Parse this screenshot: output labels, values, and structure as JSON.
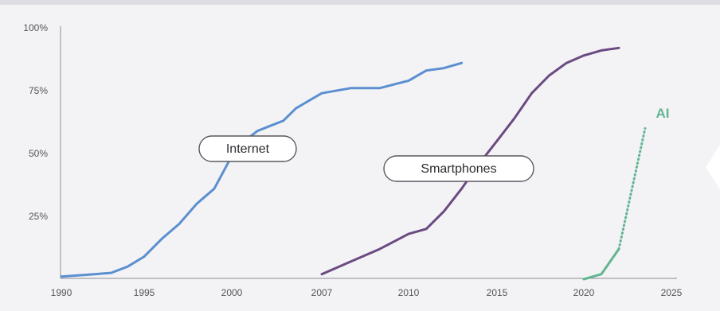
{
  "chart_data": {
    "type": "line",
    "title": "",
    "xlabel": "",
    "ylabel": "",
    "xlim": [
      1990,
      2025
    ],
    "ylim": [
      0,
      100
    ],
    "x_ticks": [
      1990,
      1995,
      2000,
      2007,
      2010,
      2015,
      2020,
      2025
    ],
    "x_tick_labels": [
      "1990",
      "1995",
      "2000",
      "2007",
      "2010",
      "2015",
      "2020",
      "2025"
    ],
    "y_ticks": [
      25,
      50,
      75,
      100
    ],
    "y_tick_labels": [
      "25%",
      "50%",
      "75%",
      "100%"
    ],
    "grid": false,
    "legend": "none",
    "series": [
      {
        "name": "Internet",
        "color": "#5b8fd0",
        "style": "solid",
        "points": [
          [
            1990,
            1
          ],
          [
            1991,
            1.5
          ],
          [
            1992,
            2
          ],
          [
            1993,
            2.5
          ],
          [
            1994,
            5
          ],
          [
            1995,
            9
          ],
          [
            1996,
            16
          ],
          [
            1997,
            22
          ],
          [
            1998,
            30
          ],
          [
            1999,
            36
          ],
          [
            2000,
            49
          ],
          [
            2001,
            55
          ],
          [
            2002,
            59
          ],
          [
            2003,
            61
          ],
          [
            2004,
            63
          ],
          [
            2005,
            68
          ],
          [
            2006,
            71
          ],
          [
            2007,
            74
          ],
          [
            2008,
            76
          ],
          [
            2009,
            76
          ],
          [
            2010,
            79
          ],
          [
            2011,
            83
          ],
          [
            2012,
            84
          ],
          [
            2013,
            86
          ]
        ]
      },
      {
        "name": "Smartphones",
        "color": "#6b4a82",
        "style": "solid",
        "points": [
          [
            2007,
            2
          ],
          [
            2008,
            7
          ],
          [
            2009,
            12
          ],
          [
            2010,
            18
          ],
          [
            2011,
            20
          ],
          [
            2012,
            27
          ],
          [
            2013,
            36
          ],
          [
            2014,
            46
          ],
          [
            2015,
            55
          ],
          [
            2016,
            64
          ],
          [
            2017,
            74
          ],
          [
            2018,
            81
          ],
          [
            2019,
            86
          ],
          [
            2020,
            89
          ],
          [
            2021,
            91
          ],
          [
            2022,
            92
          ]
        ]
      },
      {
        "name": "AI",
        "color": "#62b592",
        "style": "solid+dotted",
        "points": [
          [
            2020,
            0
          ],
          [
            2021,
            2
          ],
          [
            2022,
            12
          ]
        ],
        "dotted_points": [
          [
            2022,
            12
          ],
          [
            2023.5,
            60
          ]
        ]
      }
    ],
    "annotations": [
      "Internet",
      "Smartphones",
      "AI"
    ]
  }
}
